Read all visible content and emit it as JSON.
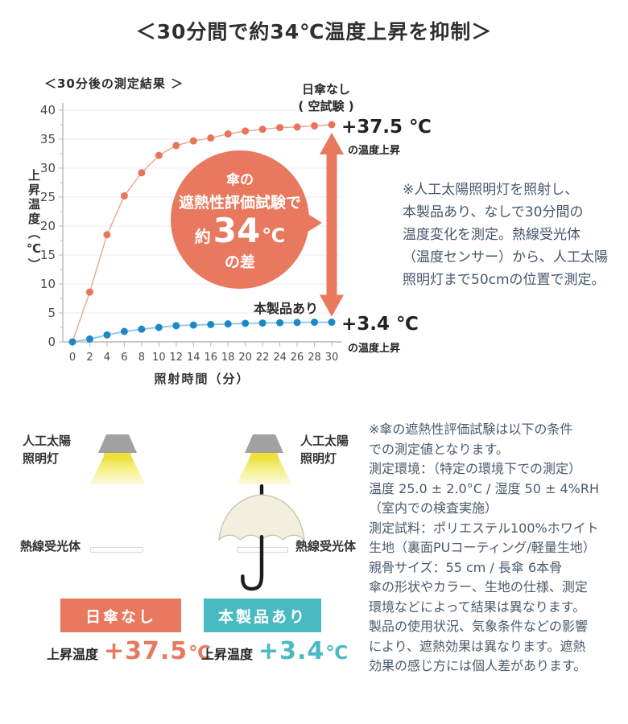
{
  "title": "＜30分間で約34℃温度上昇を抑制＞",
  "colors": {
    "accent_orange": "#E8795E",
    "accent_teal": "#49B9C2",
    "orange_dot": "#E8745A",
    "orange_line": "#EFA38A",
    "blue_dot": "#1E88C7",
    "blue_line": "#8FC9E5",
    "axis": "#B9B9B9",
    "grid": "#ECECEC",
    "tick_text": "#4A4A4A"
  },
  "chart": {
    "caption": "＜30分後の測定結果 ＞",
    "no_parasol_label": "日傘なし",
    "no_parasol_sublabel": "( 空試験 )",
    "no_parasol_value": "+37.5 ℃",
    "no_parasol_value_caption": "の温度上昇",
    "product_label": "本製品あり",
    "product_value": "+3.4 ℃",
    "product_value_caption": "の温度上昇",
    "callout": {
      "line1": "傘の",
      "line2": "遮熱性評価試験で",
      "about": "約",
      "value": "34",
      "unit": "℃",
      "line4": "の差"
    }
  },
  "chart_data": {
    "type": "line",
    "x": [
      0,
      2,
      4,
      6,
      8,
      10,
      12,
      14,
      16,
      18,
      20,
      22,
      24,
      26,
      28,
      30
    ],
    "series": [
      {
        "name": "日傘なし（空試験）",
        "values": [
          0,
          8.6,
          18.5,
          25.2,
          29.2,
          32.2,
          33.9,
          34.7,
          35.2,
          35.9,
          36.4,
          36.7,
          37.0,
          37.1,
          37.3,
          37.5
        ],
        "dot_color": "#E8745A",
        "line_color": "#EFA38A"
      },
      {
        "name": "本製品あり",
        "values": [
          0,
          0.5,
          1.2,
          1.8,
          2.2,
          2.5,
          2.8,
          2.9,
          3.0,
          3.1,
          3.2,
          3.25,
          3.3,
          3.35,
          3.4,
          3.4
        ],
        "dot_color": "#1E88C7",
        "line_color": "#8FC9E5"
      }
    ],
    "xlabel": "照射時間（分）",
    "ylabel": "上昇温度（℃）",
    "ylim": [
      0,
      40
    ],
    "yticks": [
      0,
      5,
      10,
      15,
      20,
      25,
      30,
      35,
      40
    ],
    "grid": "horizontal",
    "annotations": [
      "+37.5 ℃ の温度上昇",
      "+3.4 ℃ の温度上昇",
      "傘の遮熱性評価試験で約34℃の差"
    ]
  },
  "note_measurement": "※人工太陽照明灯を照射し、\n本製品あり、なしで30分間の\n温度変化を測定。熱線受光体\n（温度センサー）から、人工太陽\n照明灯まで50cmの位置で測定。",
  "diagram": {
    "left": {
      "lamp_label": "人工太陽\n照明灯",
      "receiver_label": "熱線受光体",
      "badge": "日傘なし",
      "result_label": "上昇温度",
      "result_value": "+37.5",
      "result_unit": "℃"
    },
    "right": {
      "lamp_label": "人工太陽\n照明灯",
      "receiver_label": "熱線受光体",
      "badge": "本製品あり",
      "result_label": "上昇温度",
      "result_value": "+3.4",
      "result_unit": "℃"
    }
  },
  "note_conditions": "※傘の遮熱性評価試験は以下の条件\nでの測定値となります。\n測定環境：（特定の環境下での測定）\n温度 25.0 ± 2.0°C / 湿度 50 ± 4%RH\n（室内での検査実施）\n測定試料：ポリエステル100%ホワイト\n生地（裏面PUコーティング/軽量生地）\n親骨サイズ：55 cm / 長傘 6本骨\n傘の形状やカラー、生地の仕様、測定\n環境などによって結果は異なります。\n製品の使用状況、気象条件などの影響\nにより、遮熱効果は異なります。遮熱\n効果の感じ方には個人差があります。"
}
